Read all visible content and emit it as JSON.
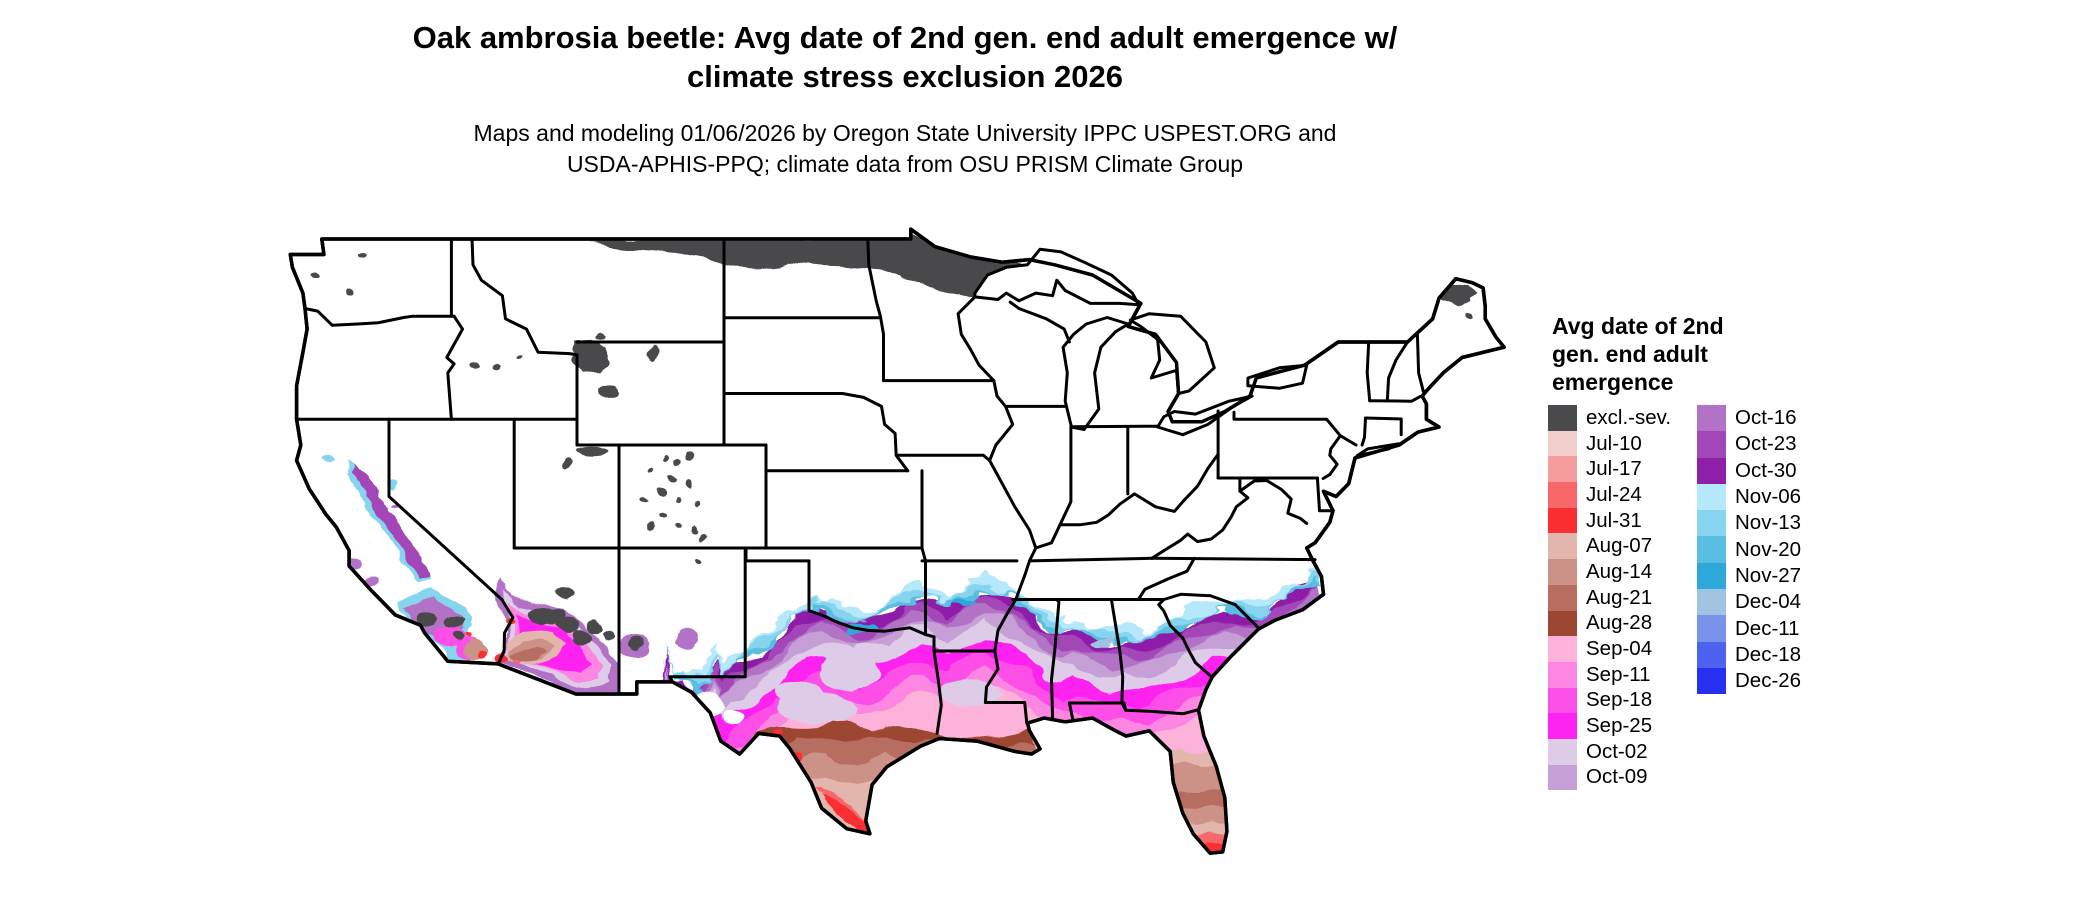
{
  "title": {
    "line1": "Oak ambrosia beetle: Avg date of 2nd gen. end adult emergence w/",
    "line2": "climate stress exclusion 2026"
  },
  "subtitle": {
    "line1": "Maps and modeling 01/06/2026 by Oregon State University IPPC USPEST.ORG and",
    "line2": "USDA-APHIS-PPQ; climate data from OSU PRISM Climate Group"
  },
  "legend": {
    "title_lines": [
      "Avg date of 2nd",
      "gen. end adult",
      "emergence"
    ],
    "column1": [
      {
        "key": "excl",
        "label": "excl.-sev.",
        "color": "#4a4a4c"
      },
      {
        "key": "jul10",
        "label": "Jul-10",
        "color": "#f2cecc"
      },
      {
        "key": "jul17",
        "label": "Jul-17",
        "color": "#f59c9c"
      },
      {
        "key": "jul24",
        "label": "Jul-24",
        "color": "#f8676a"
      },
      {
        "key": "jul31",
        "label": "Jul-31",
        "color": "#fb2e31"
      },
      {
        "key": "aug07",
        "label": "Aug-07",
        "color": "#e2b6ac"
      },
      {
        "key": "aug14",
        "label": "Aug-14",
        "color": "#cc9287"
      },
      {
        "key": "aug21",
        "label": "Aug-21",
        "color": "#b76e60"
      },
      {
        "key": "aug28",
        "label": "Aug-28",
        "color": "#9d4732"
      },
      {
        "key": "sep04",
        "label": "Sep-04",
        "color": "#fdb3d9"
      },
      {
        "key": "sep11",
        "label": "Sep-11",
        "color": "#fd86e3"
      },
      {
        "key": "sep18",
        "label": "Sep-18",
        "color": "#fd50e8"
      },
      {
        "key": "sep25",
        "label": "Sep-25",
        "color": "#fd23f0"
      },
      {
        "key": "oct02",
        "label": "Oct-02",
        "color": "#decbe8"
      },
      {
        "key": "oct09",
        "label": "Oct-09",
        "color": "#c69fd7"
      }
    ],
    "column2": [
      {
        "key": "oct16",
        "label": "Oct-16",
        "color": "#b272c6"
      },
      {
        "key": "oct23",
        "label": "Oct-23",
        "color": "#a346b8"
      },
      {
        "key": "oct30",
        "label": "Oct-30",
        "color": "#8e1fa8"
      },
      {
        "key": "nov06",
        "label": "Nov-06",
        "color": "#b5e8fb"
      },
      {
        "key": "nov13",
        "label": "Nov-13",
        "color": "#87d4ef"
      },
      {
        "key": "nov20",
        "label": "Nov-20",
        "color": "#58bee2"
      },
      {
        "key": "nov27",
        "label": "Nov-27",
        "color": "#2da8d8"
      },
      {
        "key": "dec04",
        "label": "Dec-04",
        "color": "#a0c3e2"
      },
      {
        "key": "dec11",
        "label": "Dec-11",
        "color": "#7794ea"
      },
      {
        "key": "dec18",
        "label": "Dec-18",
        "color": "#4c63ef"
      },
      {
        "key": "dec26",
        "label": "Dec-26",
        "color": "#2530f2"
      }
    ]
  },
  "map": {
    "background": "#ffffff",
    "land_color": "#ffffff",
    "border_color": "#000000"
  }
}
